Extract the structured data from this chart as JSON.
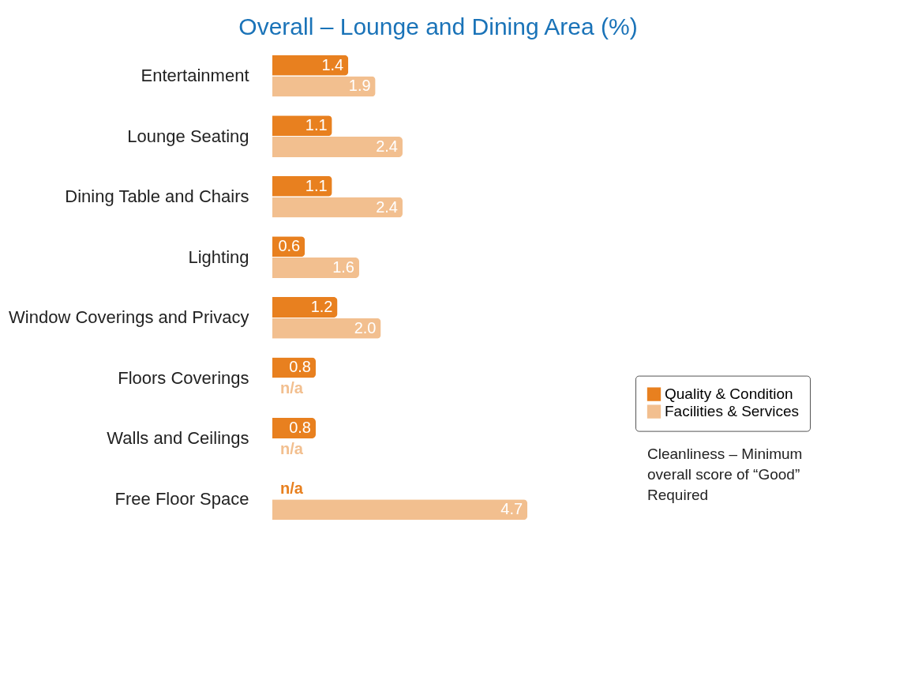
{
  "chart_data": {
    "type": "bar",
    "orientation": "horizontal",
    "title": "Overall – Lounge and Dining Area (%)",
    "categories": [
      "Entertainment",
      "Lounge Seating",
      "Dining Table and Chairs",
      "Lighting",
      "Window Coverings and Privacy",
      "Floors Coverings",
      "Walls and Ceilings",
      "Free Floor Space"
    ],
    "series": [
      {
        "name": "Quality & Condition",
        "color": "#e8801f",
        "values": [
          1.4,
          1.1,
          1.1,
          0.6,
          1.2,
          0.8,
          0.8,
          null
        ],
        "value_labels": [
          "1.4",
          "1.1",
          "1.1",
          "0.6",
          "1.2",
          "0.8",
          "0.8",
          "n/a"
        ]
      },
      {
        "name": "Facilities & Services",
        "color": "#f2bf8f",
        "values": [
          1.9,
          2.4,
          2.4,
          1.6,
          2.0,
          null,
          null,
          4.7
        ],
        "value_labels": [
          "1.9",
          "2.4",
          "2.4",
          "1.6",
          "2.0",
          "n/a",
          "n/a",
          "4.7"
        ]
      }
    ],
    "legend": "right",
    "annotations": [
      "Cleanliness – Minimum overall score of “Good” Required"
    ]
  }
}
